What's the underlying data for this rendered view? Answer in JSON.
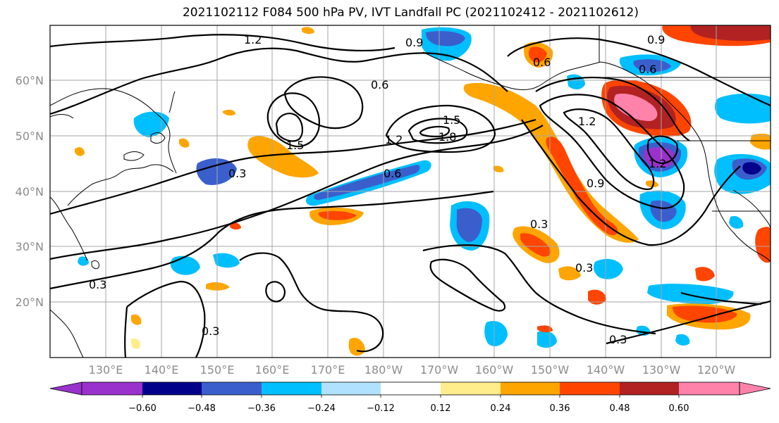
{
  "title": "2021102112 F084 500 hPa PV, IVT Landfall PC (2021102412 - 2021102612)",
  "lat_labels": [
    "60°N",
    "50°N",
    "40°N",
    "30°N",
    "20°N"
  ],
  "lon_labels": [
    "130°E",
    "140°E",
    "150°E",
    "160°E",
    "170°E",
    "180°W",
    "170°W",
    "160°W",
    "150°W",
    "140°W",
    "130°W",
    "120°W"
  ],
  "contour_labels": [
    "1.2",
    "0.9",
    "0.6",
    "1.5",
    "1.8",
    "0.3",
    "0.6",
    "1.2",
    "1.5",
    "1.2",
    "0.9",
    "0.6",
    "0.9",
    "0.3",
    "0.3",
    "0.3",
    "0.3",
    "0.3",
    "1.2",
    "0.6"
  ],
  "colorbar": {
    "tick_labels": [
      "−0.60",
      "−0.48",
      "−0.36",
      "−0.24",
      "−0.12",
      "0.12",
      "0.24",
      "0.36",
      "0.48",
      "0.60"
    ],
    "colors": [
      "#9932cc",
      "#00008b",
      "#3a5fcd",
      "#00bfff",
      "#b0e2ff",
      "#ffffff",
      "#ffec8b",
      "#ffa500",
      "#ff4500",
      "#b22222",
      "#ff82ab"
    ]
  }
}
